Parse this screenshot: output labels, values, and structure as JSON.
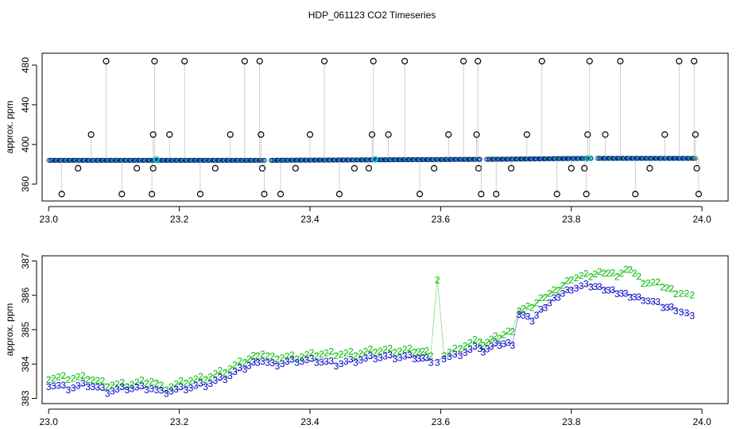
{
  "title": "HDP_061123  CO2 Timeseries",
  "colors": {
    "black": "#000000",
    "blue": "#0000cc",
    "green": "#00bb00",
    "cyan": "#00cccc",
    "grey": "#888888"
  },
  "chart_data": [
    {
      "type": "scatter",
      "name": "top-panel",
      "xlabel": "",
      "ylabel": "approx. ppm",
      "xlim": [
        22.99,
        24.04
      ],
      "ylim": [
        343,
        492
      ],
      "xticks": [
        23.0,
        23.2,
        23.4,
        23.6,
        23.8,
        24.0
      ],
      "xtick_labels": [
        "23.0",
        "23.2",
        "23.4",
        "23.6",
        "23.8",
        "24.0"
      ],
      "yticks": [
        360,
        400,
        440,
        480
      ],
      "ytick_labels": [
        "360",
        "400",
        "440",
        "480"
      ],
      "baseline": [
        {
          "x": 23.0,
          "y": 384
        },
        {
          "x": 23.33,
          "y": 384
        },
        {
          "x": 23.34,
          "y": 384
        },
        {
          "x": 23.66,
          "y": 385
        },
        {
          "x": 23.67,
          "y": 385
        },
        {
          "x": 23.83,
          "y": 386
        },
        {
          "x": 23.84,
          "y": 386
        },
        {
          "x": 23.99,
          "y": 386
        }
      ],
      "cyan_points": [
        {
          "x": 23.165,
          "y": 385
        },
        {
          "x": 23.5,
          "y": 385
        },
        {
          "x": 23.825,
          "y": 386
        }
      ],
      "outliers": [
        {
          "x": 23.02,
          "y": 350
        },
        {
          "x": 23.045,
          "y": 376
        },
        {
          "x": 23.065,
          "y": 410
        },
        {
          "x": 23.088,
          "y": 484
        },
        {
          "x": 23.112,
          "y": 350
        },
        {
          "x": 23.135,
          "y": 376
        },
        {
          "x": 23.158,
          "y": 350
        },
        {
          "x": 23.16,
          "y": 410
        },
        {
          "x": 23.162,
          "y": 484
        },
        {
          "x": 23.16,
          "y": 376
        },
        {
          "x": 23.185,
          "y": 410
        },
        {
          "x": 23.208,
          "y": 484
        },
        {
          "x": 23.232,
          "y": 350
        },
        {
          "x": 23.255,
          "y": 376
        },
        {
          "x": 23.278,
          "y": 410
        },
        {
          "x": 23.3,
          "y": 484
        },
        {
          "x": 23.323,
          "y": 484
        },
        {
          "x": 23.325,
          "y": 410
        },
        {
          "x": 23.327,
          "y": 376
        },
        {
          "x": 23.33,
          "y": 350
        },
        {
          "x": 23.355,
          "y": 350
        },
        {
          "x": 23.378,
          "y": 376
        },
        {
          "x": 23.4,
          "y": 410
        },
        {
          "x": 23.422,
          "y": 484
        },
        {
          "x": 23.445,
          "y": 350
        },
        {
          "x": 23.468,
          "y": 376
        },
        {
          "x": 23.49,
          "y": 376
        },
        {
          "x": 23.495,
          "y": 410
        },
        {
          "x": 23.497,
          "y": 484
        },
        {
          "x": 23.52,
          "y": 410
        },
        {
          "x": 23.545,
          "y": 484
        },
        {
          "x": 23.568,
          "y": 350
        },
        {
          "x": 23.59,
          "y": 376
        },
        {
          "x": 23.612,
          "y": 410
        },
        {
          "x": 23.635,
          "y": 484
        },
        {
          "x": 23.655,
          "y": 410
        },
        {
          "x": 23.657,
          "y": 484
        },
        {
          "x": 23.658,
          "y": 376
        },
        {
          "x": 23.662,
          "y": 350
        },
        {
          "x": 23.685,
          "y": 350
        },
        {
          "x": 23.708,
          "y": 376
        },
        {
          "x": 23.732,
          "y": 410
        },
        {
          "x": 23.755,
          "y": 484
        },
        {
          "x": 23.778,
          "y": 350
        },
        {
          "x": 23.8,
          "y": 376
        },
        {
          "x": 23.82,
          "y": 376
        },
        {
          "x": 23.823,
          "y": 350
        },
        {
          "x": 23.825,
          "y": 410
        },
        {
          "x": 23.828,
          "y": 484
        },
        {
          "x": 23.852,
          "y": 410
        },
        {
          "x": 23.875,
          "y": 484
        },
        {
          "x": 23.898,
          "y": 350
        },
        {
          "x": 23.92,
          "y": 376
        },
        {
          "x": 23.943,
          "y": 410
        },
        {
          "x": 23.965,
          "y": 484
        },
        {
          "x": 23.988,
          "y": 484
        },
        {
          "x": 23.99,
          "y": 410
        },
        {
          "x": 23.992,
          "y": 376
        },
        {
          "x": 23.995,
          "y": 350
        }
      ]
    },
    {
      "type": "scatter",
      "name": "bottom-panel",
      "xlabel": "",
      "ylabel": "approx. ppm",
      "xlim": [
        22.99,
        24.04
      ],
      "ylim": [
        382.85,
        387.15
      ],
      "xticks": [
        23.0,
        23.2,
        23.4,
        23.6,
        23.8,
        24.0
      ],
      "xtick_labels": [
        "23.0",
        "23.2",
        "23.4",
        "23.6",
        "23.8",
        "24.0"
      ],
      "yticks": [
        383,
        384,
        385,
        386,
        387
      ],
      "ytick_labels": [
        "383",
        "384",
        "385",
        "386",
        "387"
      ],
      "series": [
        {
          "marker": "2",
          "color": "green",
          "points": [
            {
              "x": 23.0,
              "y": 383.6
            },
            {
              "x": 23.03,
              "y": 383.6
            },
            {
              "x": 23.06,
              "y": 383.6
            },
            {
              "x": 23.09,
              "y": 383.4
            },
            {
              "x": 23.12,
              "y": 383.4
            },
            {
              "x": 23.15,
              "y": 383.5
            },
            {
              "x": 23.165,
              "y": 383.5
            },
            {
              "x": 23.18,
              "y": 383.3
            },
            {
              "x": 23.21,
              "y": 383.5
            },
            {
              "x": 23.24,
              "y": 383.6
            },
            {
              "x": 23.27,
              "y": 383.8
            },
            {
              "x": 23.3,
              "y": 384.1
            },
            {
              "x": 23.32,
              "y": 384.3
            },
            {
              "x": 23.335,
              "y": 384.3
            },
            {
              "x": 23.35,
              "y": 384.2
            },
            {
              "x": 23.38,
              "y": 384.2
            },
            {
              "x": 23.41,
              "y": 384.3
            },
            {
              "x": 23.44,
              "y": 384.3
            },
            {
              "x": 23.47,
              "y": 384.3
            },
            {
              "x": 23.5,
              "y": 384.4
            },
            {
              "x": 23.53,
              "y": 384.4
            },
            {
              "x": 23.56,
              "y": 384.4
            },
            {
              "x": 23.585,
              "y": 384.3
            },
            {
              "x": 23.595,
              "y": 386.5
            },
            {
              "x": 23.605,
              "y": 384.3
            },
            {
              "x": 23.63,
              "y": 384.5
            },
            {
              "x": 23.66,
              "y": 384.7
            },
            {
              "x": 23.665,
              "y": 384.6
            },
            {
              "x": 23.69,
              "y": 384.8
            },
            {
              "x": 23.71,
              "y": 385.0
            },
            {
              "x": 23.72,
              "y": 385.6
            },
            {
              "x": 23.74,
              "y": 385.7
            },
            {
              "x": 23.76,
              "y": 386.0
            },
            {
              "x": 23.78,
              "y": 386.2
            },
            {
              "x": 23.8,
              "y": 386.5
            },
            {
              "x": 23.83,
              "y": 386.6
            },
            {
              "x": 23.85,
              "y": 386.7
            },
            {
              "x": 23.87,
              "y": 386.6
            },
            {
              "x": 23.89,
              "y": 386.8
            },
            {
              "x": 23.91,
              "y": 386.4
            },
            {
              "x": 23.94,
              "y": 386.3
            },
            {
              "x": 23.96,
              "y": 386.1
            },
            {
              "x": 23.985,
              "y": 386.0
            }
          ]
        },
        {
          "marker": "3",
          "color": "blue",
          "points": [
            {
              "x": 23.0,
              "y": 383.4
            },
            {
              "x": 23.03,
              "y": 383.3
            },
            {
              "x": 23.06,
              "y": 383.4
            },
            {
              "x": 23.09,
              "y": 383.2
            },
            {
              "x": 23.12,
              "y": 383.3
            },
            {
              "x": 23.15,
              "y": 383.3
            },
            {
              "x": 23.165,
              "y": 383.3
            },
            {
              "x": 23.18,
              "y": 383.2
            },
            {
              "x": 23.21,
              "y": 383.3
            },
            {
              "x": 23.24,
              "y": 383.4
            },
            {
              "x": 23.27,
              "y": 383.6
            },
            {
              "x": 23.3,
              "y": 383.9
            },
            {
              "x": 23.32,
              "y": 384.1
            },
            {
              "x": 23.335,
              "y": 384.1
            },
            {
              "x": 23.35,
              "y": 384.0
            },
            {
              "x": 23.38,
              "y": 384.1
            },
            {
              "x": 23.41,
              "y": 384.1
            },
            {
              "x": 23.44,
              "y": 384.0
            },
            {
              "x": 23.47,
              "y": 384.1
            },
            {
              "x": 23.5,
              "y": 384.2
            },
            {
              "x": 23.53,
              "y": 384.2
            },
            {
              "x": 23.56,
              "y": 384.2
            },
            {
              "x": 23.585,
              "y": 384.1
            },
            {
              "x": 23.595,
              "y": 384.1
            },
            {
              "x": 23.605,
              "y": 384.2
            },
            {
              "x": 23.63,
              "y": 384.3
            },
            {
              "x": 23.66,
              "y": 384.5
            },
            {
              "x": 23.665,
              "y": 384.4
            },
            {
              "x": 23.69,
              "y": 384.6
            },
            {
              "x": 23.71,
              "y": 384.6
            },
            {
              "x": 23.72,
              "y": 385.5
            },
            {
              "x": 23.74,
              "y": 385.3
            },
            {
              "x": 23.76,
              "y": 385.7
            },
            {
              "x": 23.78,
              "y": 386.0
            },
            {
              "x": 23.8,
              "y": 386.2
            },
            {
              "x": 23.83,
              "y": 386.3
            },
            {
              "x": 23.85,
              "y": 386.2
            },
            {
              "x": 23.87,
              "y": 386.1
            },
            {
              "x": 23.89,
              "y": 386.0
            },
            {
              "x": 23.91,
              "y": 385.9
            },
            {
              "x": 23.94,
              "y": 385.7
            },
            {
              "x": 23.96,
              "y": 385.6
            },
            {
              "x": 23.985,
              "y": 385.4
            }
          ]
        }
      ]
    }
  ]
}
